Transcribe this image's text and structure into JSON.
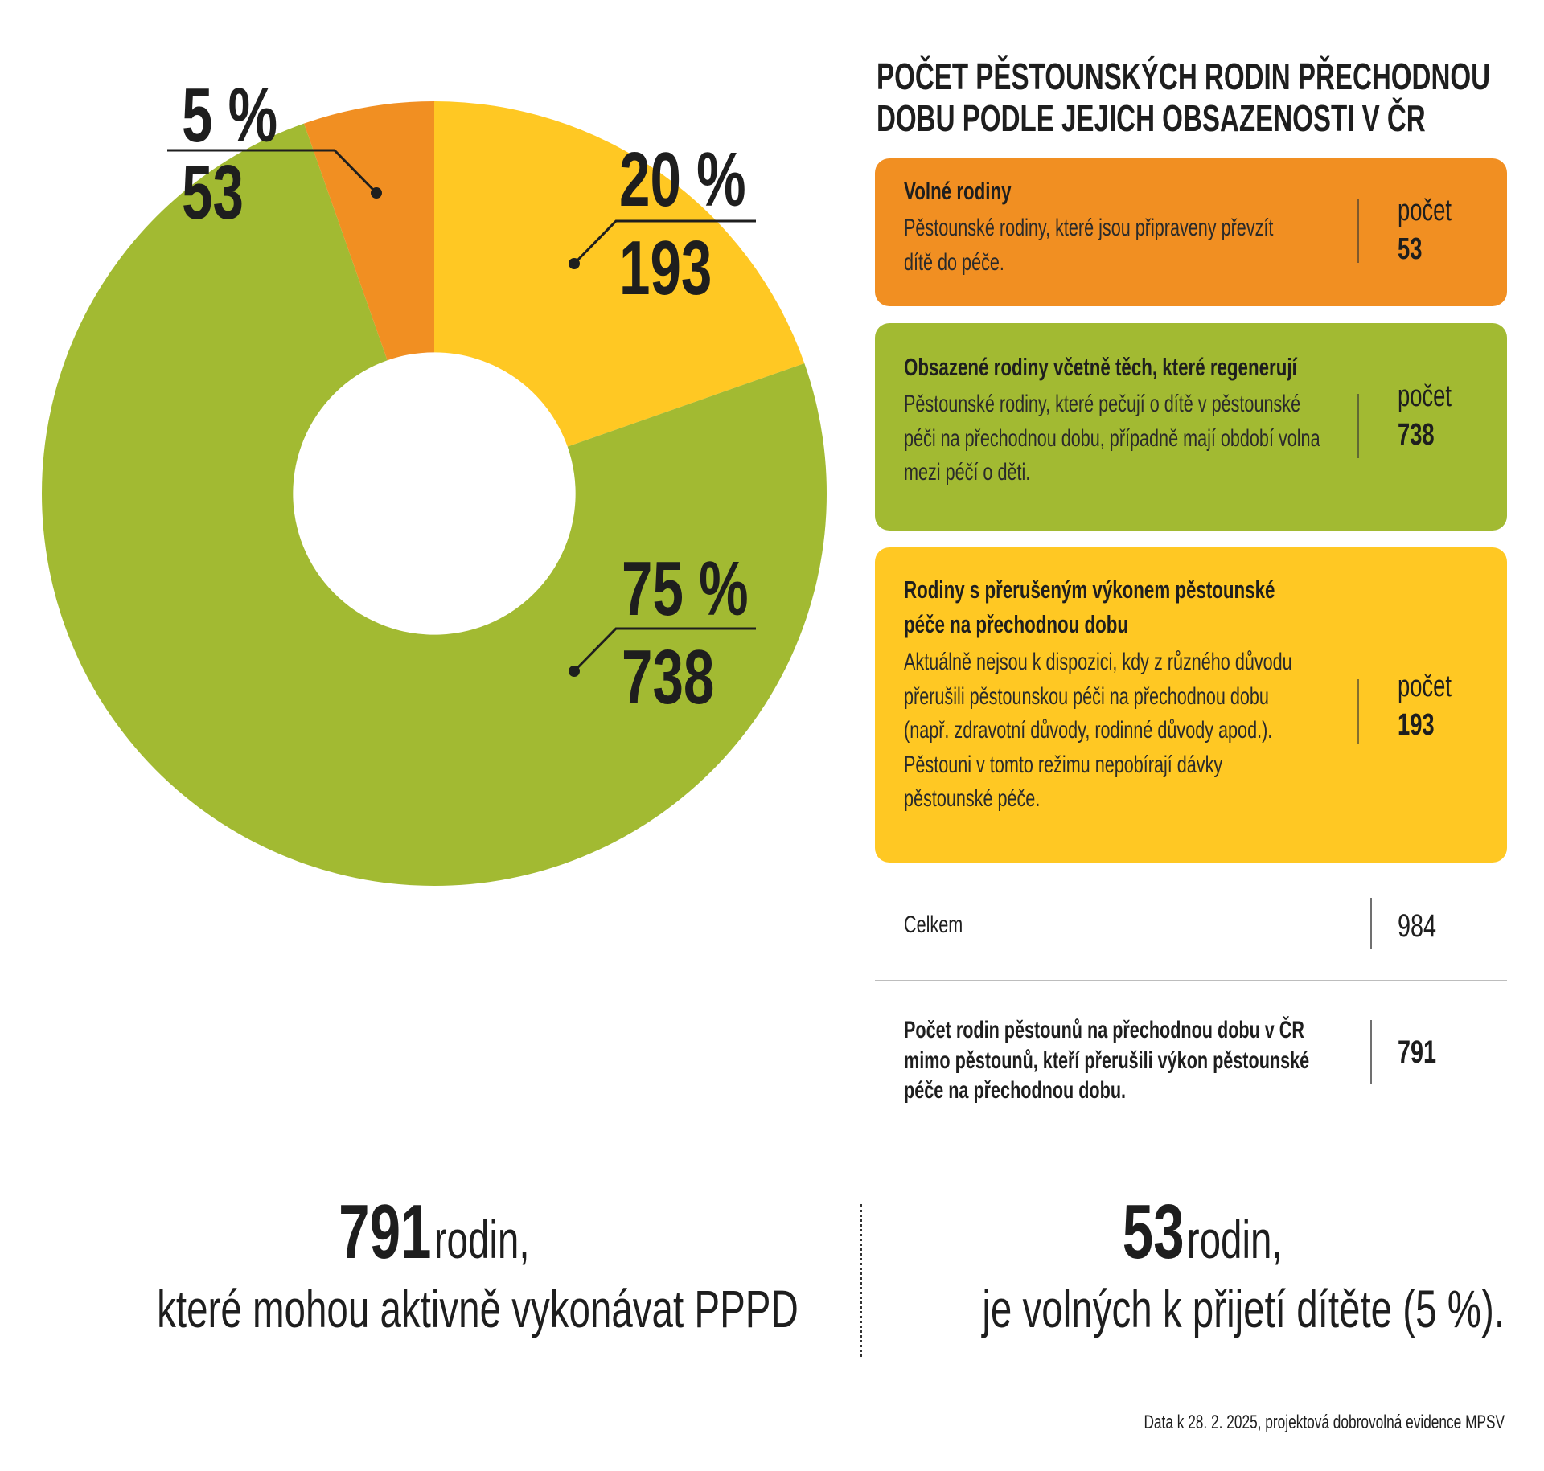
{
  "chart_data": {
    "type": "donut",
    "title": "Počet pěstounských rodin přechodnou dobu podle jejich obsazenosti v ČR",
    "slices": [
      {
        "category": "Rodiny s přerušeným výkonem pěstounské péče na přechodnou dobu",
        "value": 193,
        "percent": "20 %",
        "value_label": "193",
        "color": "#FFC823"
      },
      {
        "category": "Obsazené rodiny včetně těch, které regenerují",
        "value": 738,
        "percent": "75 %",
        "value_label": "738",
        "color": "#A2BA32"
      },
      {
        "category": "Volné rodiny",
        "value": 53,
        "percent": "5 %",
        "value_label": "53",
        "color": "#F18F22"
      }
    ],
    "start_angle_deg": 0,
    "direction": "clockwise",
    "hole_ratio": 0.36
  },
  "panel": {
    "title_line1": "Počet pěstounských rodin přechodnou",
    "title_line2": "dobu podle jejich obsazenosti v ČR"
  },
  "cards": [
    {
      "title_lines": [
        "Volné rodiny"
      ],
      "desc_lines": [
        "Pěstounské rodiny, které jsou připraveny převzít",
        "dítě do péče."
      ],
      "count_label": "počet",
      "count": "53",
      "color": "#F18F22"
    },
    {
      "title_lines": [
        "Obsazené rodiny včetně těch, které regenerují"
      ],
      "desc_lines": [
        "Pěstounské rodiny, které pečují o dítě v pěstounské",
        "péči na přechodnou dobu, případně mají období volna",
        "mezi péčí o děti."
      ],
      "count_label": "počet",
      "count": "738",
      "color": "#A2BA32"
    },
    {
      "title_lines": [
        "Rodiny s přerušeným výkonem pěstounské",
        "péče na přechodnou dobu"
      ],
      "desc_lines": [
        "Aktuálně nejsou k dispozici, kdy z různého důvodu",
        "přerušili pěstounskou péči na přechodnou dobu",
        "(např. zdravotní důvody, rodinné důvody apod.).",
        "Pěstouni v tomto režimu nepobírají dávky",
        "pěstounské péče."
      ],
      "count_label": "počet",
      "count": "193",
      "color": "#FFC823"
    }
  ],
  "total": {
    "label": "Celkem",
    "value": "984"
  },
  "active": {
    "label_lines": [
      "Počet rodin pěstounů na přechodnou dobu v ČR",
      "mimo pěstounů, kteří přerušili výkon pěstounské",
      "péče na přechodnou dobu."
    ],
    "value": "791"
  },
  "summary_left": {
    "number": "791",
    "word": "rodin,",
    "line2": "které mohou aktivně vykonávat PPPD"
  },
  "summary_right": {
    "number": "53",
    "word": "rodin,",
    "line2": "je volných k přijetí dítěte (5 %)."
  },
  "source": "Data k 28. 2. 2025, projektová dobrovolná evidence MPSV"
}
